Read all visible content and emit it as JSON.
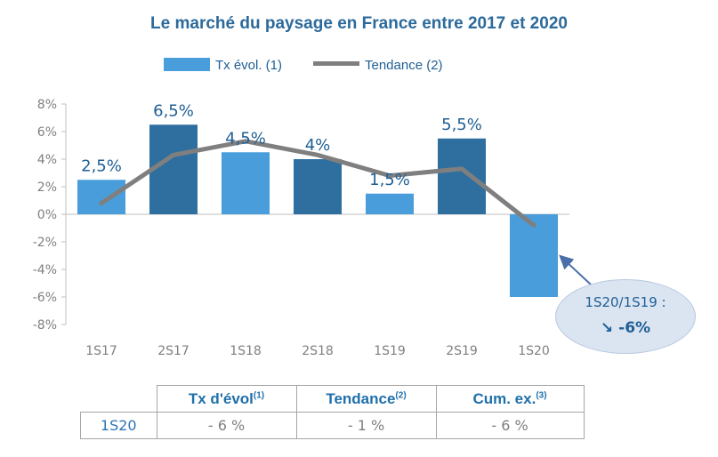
{
  "chart_data": {
    "type": "bar",
    "title": "Le marché du paysage en France entre 2017 et 2020",
    "categories": [
      "1S17",
      "2S17",
      "1S18",
      "2S18",
      "1S19",
      "2S19",
      "1S20"
    ],
    "series": [
      {
        "name": "Tx évol. (1)",
        "type": "bar",
        "values": [
          2.5,
          6.5,
          4.5,
          4,
          1.5,
          5.5,
          -6
        ],
        "labels": [
          "2,5%",
          "6,5%",
          "4,5%",
          "4%",
          "1,5%",
          "5,5%",
          ""
        ],
        "colors": [
          "#4a9ddb",
          "#2e6fa0",
          "#4a9ddb",
          "#2e6fa0",
          "#4a9ddb",
          "#2e6fa0",
          "#4a9ddb"
        ]
      },
      {
        "name": "Tendance (2)",
        "type": "line",
        "values": [
          0.8,
          4.3,
          5.3,
          4.3,
          2.8,
          3.3,
          -0.8
        ],
        "color": "#7f7f7f"
      }
    ],
    "ylim": [
      -8,
      8
    ],
    "yticks": [
      8,
      6,
      4,
      2,
      0,
      -2,
      -4,
      -6,
      -8
    ],
    "ytick_labels": [
      "8%",
      "6%",
      "4%",
      "2%",
      "0%",
      "-2%",
      "-4%",
      "-6%",
      "-8%"
    ],
    "grid": false,
    "legend": "top",
    "annotation": {
      "label": "1S20/1S19 :",
      "value": "-6%",
      "icon": "arrow-down-right-icon"
    }
  },
  "summary_table": {
    "headers": [
      {
        "text": "Tx d'évol",
        "sup": "(1)"
      },
      {
        "text": "Tendance",
        "sup": "(2)"
      },
      {
        "text": "Cum. ex.",
        "sup": "(3)"
      }
    ],
    "row": {
      "label": "1S20",
      "values": [
        "- 6 %",
        "- 1 %",
        "- 6 %"
      ]
    }
  }
}
